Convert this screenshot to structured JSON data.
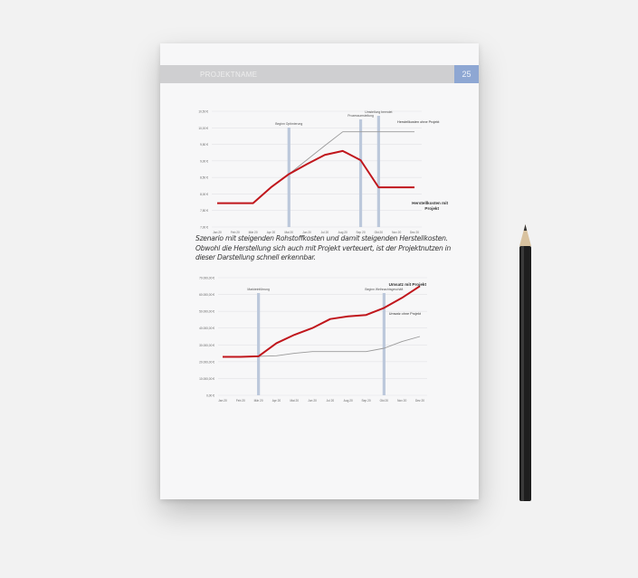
{
  "header": {
    "title": "PROJEKTNAME",
    "page_number": "25",
    "bar_color": "#cfcfd1",
    "number_color": "#8ea7d3"
  },
  "caption": "Szenario mit steigenden Rohstoffkosten und damit steigenden Herstellkosten. Obwohl die Herstellung sich auch mit Projekt verteuert, ist der Projektnutzen in dieser Darstellung schnell erkennbar.",
  "chart_data": [
    {
      "type": "line",
      "title": "",
      "ylim": [
        7,
        10.5
      ],
      "categories": [
        "Jan 20",
        "Feb 20",
        "Mär 20",
        "Apr 20",
        "Mai 20",
        "Jun 20",
        "Jul 20",
        "Aug 20",
        "Sep 20",
        "Okt 20",
        "Nov 20",
        "Dez 20"
      ],
      "yticks": [
        {
          "v": 7,
          "label": "7,00 €"
        },
        {
          "v": 7.5,
          "label": "7,50 €"
        },
        {
          "v": 8,
          "label": "8,00 €"
        },
        {
          "v": 8.5,
          "label": "8,50 €"
        },
        {
          "v": 9,
          "label": "9,00 €"
        },
        {
          "v": 9.5,
          "label": "9,50 €"
        },
        {
          "v": 10,
          "label": "10,00 €"
        },
        {
          "v": 10.5,
          "label": "10,50 €"
        }
      ],
      "series": [
        {
          "name": "Herstellkosten ohne Projekt",
          "color": "#9a9a9a",
          "values": [
            7.72,
            7.72,
            7.72,
            8.2,
            8.6,
            9.03,
            9.46,
            9.88,
            9.88,
            9.88,
            9.88,
            9.88
          ]
        },
        {
          "name": "Herstellkosten mit Projekt",
          "color": "#c0161c",
          "values": [
            7.72,
            7.72,
            7.72,
            8.2,
            8.6,
            8.9,
            9.18,
            9.3,
            9.02,
            8.2,
            8.2,
            8.2
          ]
        }
      ],
      "markers": [
        {
          "at": "Mai 20",
          "label": "Beginn Optimierung"
        },
        {
          "at": "Sep 20",
          "label": "Prozessumstellung"
        },
        {
          "at": "Okt 20",
          "label": "Umstellung beendet"
        }
      ],
      "grid": true
    },
    {
      "type": "line",
      "title": "",
      "ylim": [
        0,
        70000
      ],
      "categories": [
        "Jan 20",
        "Feb 20",
        "Mär 20",
        "Apr 20",
        "Mai 20",
        "Jun 20",
        "Jul 20",
        "Aug 20",
        "Sep 20",
        "Okt 20",
        "Nov 20",
        "Dez 20"
      ],
      "yticks": [
        {
          "v": 0,
          "label": "0,00 €"
        },
        {
          "v": 10000,
          "label": "10.000,00 €"
        },
        {
          "v": 20000,
          "label": "20.000,00 €"
        },
        {
          "v": 30000,
          "label": "30.000,00 €"
        },
        {
          "v": 40000,
          "label": "40.000,00 €"
        },
        {
          "v": 50000,
          "label": "50.000,00 €"
        },
        {
          "v": 60000,
          "label": "60.000,00 €"
        },
        {
          "v": 70000,
          "label": "70.000,00 €"
        }
      ],
      "series": [
        {
          "name": "Umsatz ohne Projekt",
          "color": "#9a9a9a",
          "values": [
            22900,
            22900,
            23200,
            23500,
            25000,
            26000,
            26000,
            26000,
            26000,
            28000,
            32000,
            35000
          ]
        },
        {
          "name": "Umsatz mit Projekt",
          "color": "#c0161c",
          "values": [
            22900,
            22900,
            23200,
            31000,
            36000,
            40000,
            45400,
            47000,
            47800,
            52000,
            58000,
            65000
          ]
        }
      ],
      "markers": [
        {
          "at": "Mär 20",
          "label": "Markteinführung"
        },
        {
          "at": "Okt 20",
          "label": "Beginn Weihnachtsgeschäft"
        }
      ],
      "grid": true
    }
  ]
}
